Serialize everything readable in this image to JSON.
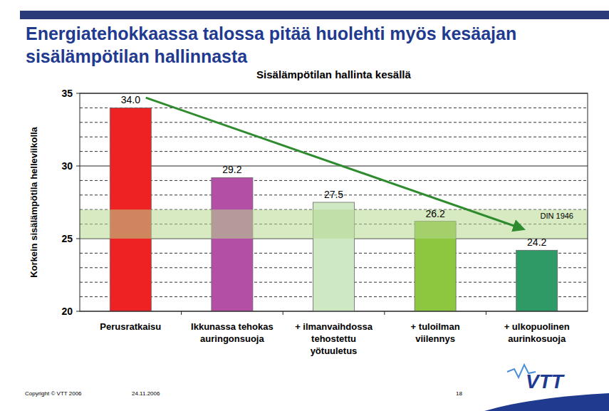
{
  "slide": {
    "title": [
      "Energiatehokkaassa talossa pitää huolehti myös kesäajan",
      "sisälämpötilan hallinnasta"
    ],
    "copyright": "Copyright © VTT 2006",
    "date": "24.11.2006",
    "page": "18",
    "logo": "VTT"
  },
  "chart_data": {
    "type": "bar",
    "title": "Sisälämpötilan hallinta kesällä",
    "y_label": "Korkein sisälämpötila helleviikolla",
    "categories": [
      "Perusratkaisu",
      "Ikkunassa tehokas\nauringonsuoja",
      "+ ilmanvaihdossa\ntehostettu\nyötuuletus",
      "+ tuloilman\nviilennys",
      "+ ulkopuolinen\naurinkosuoja"
    ],
    "values": [
      34.0,
      29.2,
      27.5,
      26.2,
      24.2
    ],
    "value_labels": [
      "34.0",
      "29.2",
      "27.5",
      "26.2",
      "24.2"
    ],
    "colors": [
      "#ee2222",
      "#b44fa6",
      "#cfe8c4",
      "#8dc63f",
      "#2e9a66"
    ],
    "data_labels": true,
    "ylim": [
      20,
      35
    ],
    "yticks": [
      20,
      25,
      30,
      35
    ],
    "yticks_minor": [
      21,
      22,
      23,
      24,
      26,
      27,
      28,
      29,
      31,
      32,
      33,
      34
    ],
    "grid": true,
    "bands": [
      {
        "from": 25,
        "to": 27,
        "label": "DIN 1946"
      }
    ],
    "arrow": {
      "from": [
        0.15,
        34.7
      ],
      "to": [
        3.85,
        25.7
      ]
    }
  }
}
